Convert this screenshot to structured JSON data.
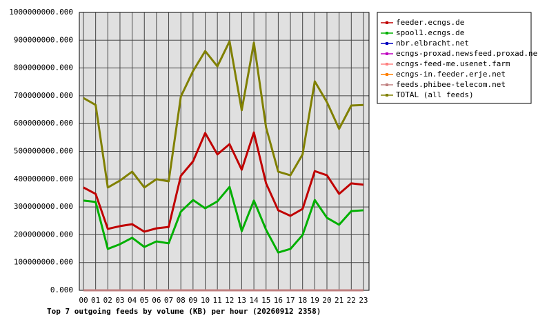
{
  "chart_data": {
    "type": "line",
    "title": "Top 7 outgoing feeds by volume (KB) per hour (20260912 2358)",
    "categories": [
      "00",
      "01",
      "02",
      "03",
      "04",
      "05",
      "06",
      "07",
      "08",
      "09",
      "10",
      "11",
      "12",
      "13",
      "14",
      "15",
      "16",
      "17",
      "18",
      "19",
      "20",
      "21",
      "22",
      "23"
    ],
    "series": [
      {
        "name": "feeder.ecngs.de",
        "color": "#c00000",
        "values": [
          370000000,
          347000000,
          221000000,
          231000000,
          238000000,
          211000000,
          223000000,
          228000000,
          412000000,
          464000000,
          566000000,
          489000000,
          526000000,
          434000000,
          568000000,
          385000000,
          288000000,
          268000000,
          293000000,
          429000000,
          414000000,
          347000000,
          385000000,
          380000000
        ]
      },
      {
        "name": "spool1.ecngs.de",
        "color": "#00b000",
        "values": [
          323000000,
          318000000,
          149000000,
          166000000,
          189000000,
          156000000,
          176000000,
          169000000,
          283000000,
          325000000,
          295000000,
          320000000,
          372000000,
          213000000,
          323000000,
          218000000,
          136000000,
          149000000,
          199000000,
          325000000,
          261000000,
          236000000,
          285000000,
          288000000
        ]
      },
      {
        "name": "nbr.elbracht.net",
        "color": "#0000c0",
        "values": [
          0,
          0,
          0,
          0,
          0,
          0,
          0,
          0,
          0,
          0,
          0,
          0,
          0,
          0,
          0,
          0,
          0,
          0,
          0,
          0,
          0,
          0,
          0,
          0
        ]
      },
      {
        "name": "ecngs-proxad.newsfeed.proxad.net",
        "color": "#c000c0",
        "values": [
          0,
          0,
          0,
          0,
          0,
          0,
          0,
          0,
          0,
          0,
          0,
          0,
          0,
          0,
          0,
          0,
          0,
          0,
          0,
          0,
          0,
          0,
          0,
          0
        ]
      },
      {
        "name": "ecngs-feed-me.usenet.farm",
        "color": "#ff8080",
        "values": [
          0,
          0,
          0,
          0,
          0,
          0,
          0,
          0,
          0,
          0,
          0,
          0,
          0,
          0,
          0,
          0,
          0,
          0,
          0,
          0,
          0,
          0,
          0,
          0
        ]
      },
      {
        "name": "ecngs-in.feeder.erje.net",
        "color": "#ff8000",
        "values": [
          0,
          0,
          0,
          0,
          0,
          0,
          0,
          0,
          0,
          0,
          0,
          0,
          0,
          0,
          0,
          0,
          0,
          0,
          0,
          0,
          0,
          0,
          0,
          0
        ]
      },
      {
        "name": "feeds.phibee-telecom.net",
        "color": "#c08080",
        "values": [
          0,
          0,
          0,
          0,
          0,
          0,
          0,
          0,
          0,
          0,
          0,
          0,
          0,
          0,
          0,
          0,
          0,
          0,
          0,
          0,
          0,
          0,
          0,
          0
        ]
      },
      {
        "name": "TOTAL (all feeds)",
        "color": "#808000",
        "values": [
          692000000,
          667000000,
          370000000,
          395000000,
          427000000,
          370000000,
          400000000,
          392000000,
          697000000,
          789000000,
          861000000,
          806000000,
          896000000,
          648000000,
          891000000,
          586000000,
          427000000,
          414000000,
          489000000,
          752000000,
          677000000,
          581000000,
          665000000,
          667000000
        ]
      }
    ],
    "ylim": [
      0,
      1000000000
    ],
    "yticks": [
      {
        "value": 0,
        "label": "0.000"
      },
      {
        "value": 100000000,
        "label": "100000000.000"
      },
      {
        "value": 200000000,
        "label": "200000000.000"
      },
      {
        "value": 300000000,
        "label": "300000000.000"
      },
      {
        "value": 400000000,
        "label": "400000000.000"
      },
      {
        "value": 500000000,
        "label": "500000000.000"
      },
      {
        "value": 600000000,
        "label": "600000000.000"
      },
      {
        "value": 700000000,
        "label": "700000000.000"
      },
      {
        "value": 800000000,
        "label": "800000000.000"
      },
      {
        "value": 900000000,
        "label": "900000000.000"
      },
      {
        "value": 1000000000,
        "label": "1000000000.000"
      }
    ],
    "grid": true
  }
}
